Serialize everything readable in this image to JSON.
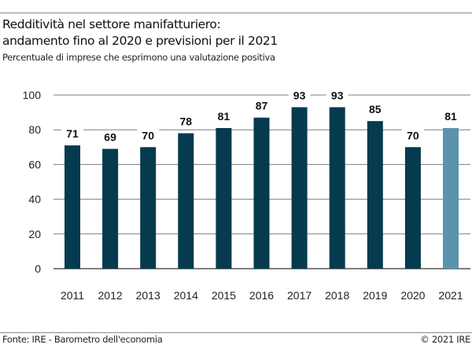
{
  "header": {
    "title_line1": "Redditività nel settore manifatturiero:",
    "title_line2": "andamento fino al 2020 e previsioni per il 2021",
    "subtitle": "Percentuale di imprese che esprimono una valutazione positiva"
  },
  "footer": {
    "source": "Fonte: IRE - Barometro dell'economia",
    "copyright": "© 2021 IRE"
  },
  "colors": {
    "actual": "#063a4f",
    "forecast": "#5a93ab",
    "grid": "#7f7f7f"
  },
  "chart_data": {
    "type": "bar",
    "title": "Redditività nel settore manifatturiero: andamento fino al 2020 e previsioni per il 2021",
    "subtitle": "Percentuale di imprese che esprimono una valutazione positiva",
    "xlabel": "",
    "ylabel": "",
    "categories": [
      "2011",
      "2012",
      "2013",
      "2014",
      "2015",
      "2016",
      "2017",
      "2018",
      "2019",
      "2020",
      "2021"
    ],
    "values": [
      71,
      69,
      70,
      78,
      81,
      87,
      93,
      93,
      85,
      70,
      81
    ],
    "forecast": [
      false,
      false,
      false,
      false,
      false,
      false,
      false,
      false,
      false,
      false,
      true
    ],
    "ylim": [
      0,
      100
    ],
    "yticks": [
      0,
      20,
      40,
      60,
      80,
      100
    ],
    "grid": true,
    "data_labels": true,
    "legend": "none"
  }
}
